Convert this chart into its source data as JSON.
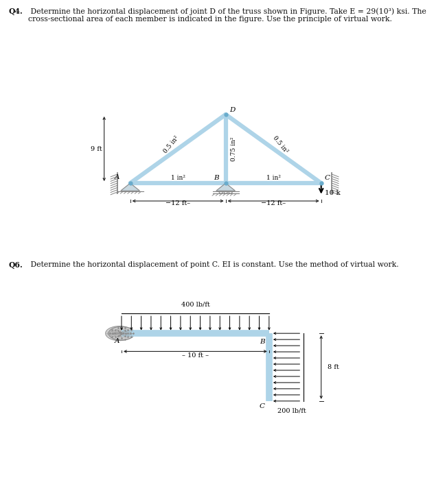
{
  "q4_text_bold": "Q4.",
  "q4_text_rest": " Determine the horizontal displacement of joint D of the truss shown in Figure. Take E = 29(10³) ksi. The\ncross-sectional area of each member is indicated in the figure. Use the principle of virtual work.",
  "q6_text_bold": "Q6.",
  "q6_text_rest": " Determine the horizontal displacement of point C. EI is constant. Use the method of virtual work.",
  "truss_color": "#aed4e8",
  "frame_color": "#aed4e8",
  "support_color": "#c8d8e0",
  "dim_color": "#222222",
  "text_color": "#111111"
}
